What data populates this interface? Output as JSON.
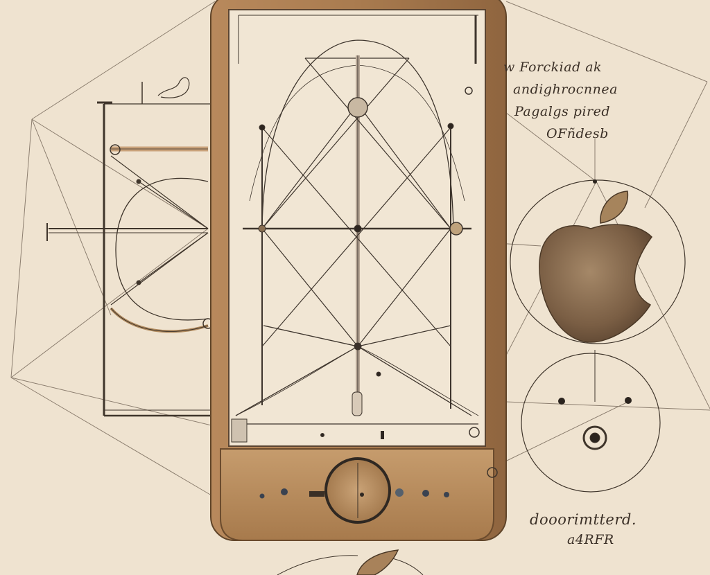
{
  "notes": {
    "line1": "w Forckiad ak",
    "line2": "andighrocnnea",
    "line3": "Pagalgs pired",
    "line4": "OFñdesb",
    "line5": "dooorimtterd.",
    "line6": "a4RFR"
  },
  "colors": {
    "paper": "#efe3d0",
    "ink": "#3a2f26",
    "wood": "#a7784b",
    "apple": "#7d6348"
  },
  "icons": [
    "apple-logo-icon",
    "home-button-icon",
    "seed-icon"
  ]
}
